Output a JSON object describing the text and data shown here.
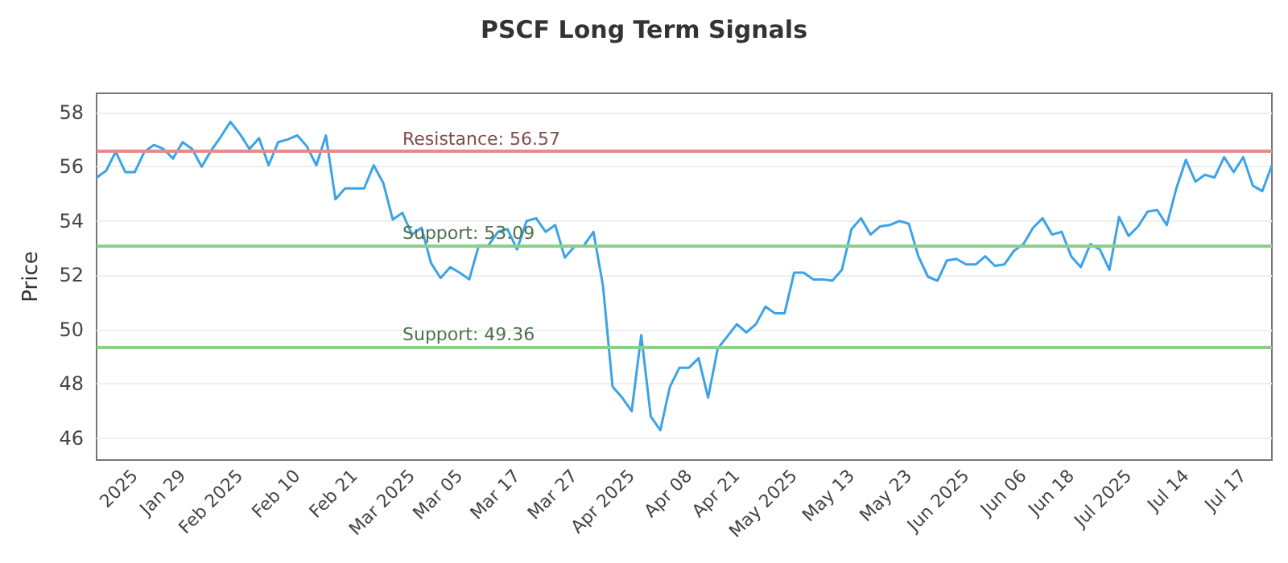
{
  "chart_data": {
    "type": "line",
    "title": "PSCF Long Term Signals",
    "ylabel": "Price",
    "categories": [
      null,
      null,
      null,
      null,
      "2025",
      null,
      null,
      null,
      null,
      "Jan 29",
      null,
      null,
      null,
      null,
      null,
      "Feb 2025",
      null,
      null,
      null,
      null,
      null,
      "Feb 10",
      null,
      null,
      null,
      null,
      null,
      "Feb 21",
      null,
      null,
      null,
      null,
      null,
      "Mar 2025",
      null,
      null,
      null,
      null,
      "Mar 05",
      null,
      null,
      null,
      null,
      null,
      "Mar 17",
      null,
      null,
      null,
      null,
      null,
      "Mar 27",
      null,
      null,
      null,
      null,
      null,
      "Apr 2025",
      null,
      null,
      null,
      null,
      null,
      "Apr 08",
      null,
      null,
      null,
      null,
      "Apr 21",
      null,
      null,
      null,
      null,
      null,
      "May 2025",
      null,
      null,
      null,
      null,
      null,
      "May 13",
      null,
      null,
      null,
      null,
      null,
      "May 23",
      null,
      null,
      null,
      null,
      null,
      "Jun 2025",
      null,
      null,
      null,
      null,
      null,
      "Jun 06",
      null,
      null,
      null,
      null,
      "Jun 18",
      null,
      null,
      null,
      null,
      null,
      "Jul 2025",
      null,
      null,
      null,
      null,
      null,
      "Jul 14",
      null,
      null,
      null,
      null,
      null,
      "Jul 17",
      null,
      null,
      null
    ],
    "series": [
      {
        "color": "#3ba3e6",
        "values": [
          55.6,
          55.85,
          56.55,
          55.8,
          55.8,
          56.55,
          56.8,
          56.65,
          56.3,
          56.9,
          56.65,
          56.0,
          56.6,
          57.1,
          57.65,
          57.2,
          56.65,
          57.05,
          56.05,
          56.9,
          57.0,
          57.15,
          56.75,
          56.05,
          57.15,
          54.8,
          55.2,
          55.2,
          55.2,
          56.05,
          55.4,
          54.05,
          54.3,
          53.5,
          53.75,
          52.45,
          51.9,
          52.3,
          52.1,
          51.85,
          53.1,
          53.1,
          53.6,
          53.7,
          52.95,
          54.0,
          54.1,
          53.6,
          53.85,
          52.65,
          53.05,
          53.1,
          53.6,
          51.6,
          47.9,
          47.5,
          47.0,
          49.8,
          46.8,
          46.3,
          47.9,
          48.6,
          48.6,
          48.95,
          47.5,
          49.3,
          49.75,
          50.2,
          49.9,
          50.2,
          50.85,
          50.6,
          50.6,
          52.1,
          52.1,
          51.85,
          51.85,
          51.8,
          52.2,
          53.7,
          54.1,
          53.5,
          53.8,
          53.85,
          54.0,
          53.9,
          52.7,
          51.95,
          51.8,
          52.55,
          52.6,
          52.4,
          52.4,
          52.7,
          52.35,
          52.4,
          52.9,
          53.15,
          53.75,
          54.1,
          53.5,
          53.6,
          52.7,
          52.3,
          53.15,
          52.95,
          52.2,
          54.15,
          53.45,
          53.8,
          54.35,
          54.4,
          53.85,
          55.2,
          56.25,
          55.45,
          55.7,
          55.6,
          56.35,
          55.8,
          56.35,
          55.3,
          55.1,
          56.05
        ]
      }
    ],
    "ylim": [
      45.2,
      58.7
    ],
    "yticks": [
      46,
      48,
      50,
      52,
      54,
      56,
      58
    ],
    "ref_lines": [
      {
        "axis": "y",
        "value": 56.57,
        "label": "Resistance: 56.57",
        "color": "#e88a8a"
      },
      {
        "axis": "y",
        "value": 53.09,
        "label": "Support: 53.09",
        "color": "#8ccf8c"
      },
      {
        "axis": "y",
        "value": 49.36,
        "label": "Support: 49.36",
        "color": "#8ccf8c"
      }
    ],
    "grid": "y",
    "marker": "none",
    "line_style": "solid"
  }
}
